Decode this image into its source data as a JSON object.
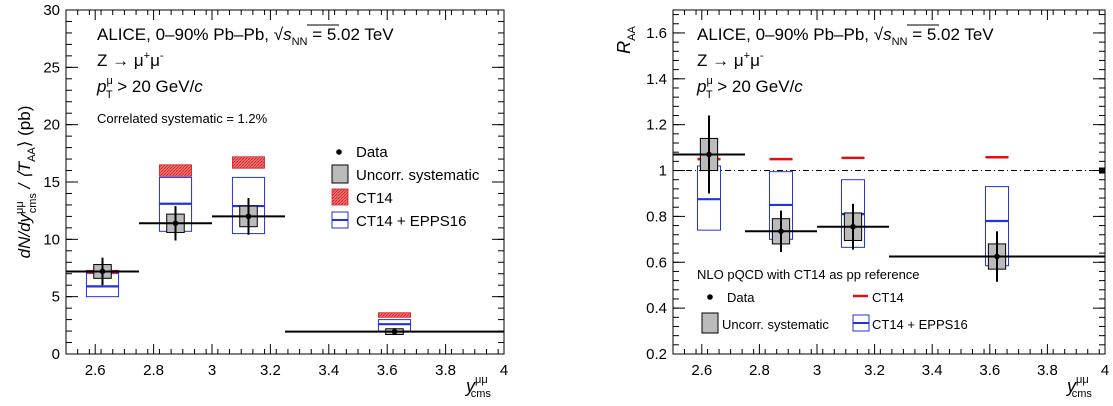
{
  "chart_data": [
    {
      "type": "scatter",
      "xlabel_main": "y",
      "xlabel_sup": "μμ",
      "xlabel_sub": "cms",
      "ylabel": "dN/dy",
      "ylabel_tail": " / ⟨T",
      "ylabel_sup": "μμ",
      "ylabel_sub": "cms",
      "ylabel_sub2": "AA",
      "ylabel_unit": "⟩ (pb)",
      "xlim": [
        2.5,
        4.0
      ],
      "ylim": [
        0,
        30
      ],
      "xticks": [
        "2.6",
        "2.8",
        "3",
        "3.2",
        "3.4",
        "3.6",
        "3.8",
        "4"
      ],
      "yticks": [
        "0",
        "5",
        "10",
        "15",
        "20",
        "25",
        "30"
      ],
      "annotations": {
        "line1_prefix": "ALICE, 0–90% Pb–Pb, ",
        "sqrt_symbol": "√",
        "s_symbol": "s",
        "nn_sub": "NN",
        "energy": " = 5.02 TeV",
        "process": "Z → μ",
        "process_sup1": "+",
        "process_mid": "μ",
        "process_sup2": "-",
        "pt_main": "p",
        "pt_sub": "T",
        "pt_sup": "μ",
        "pt_cut": " > 20 GeV/",
        "pt_c": "c",
        "corr_syst": "Correlated systematic = 1.2%"
      },
      "legend": [
        "Data",
        "Uncorr. systematic",
        "CT14",
        "CT14 + EPPS16"
      ],
      "series": [
        {
          "name": "Data",
          "x": [
            2.625,
            2.875,
            3.125,
            3.625
          ],
          "xerr": [
            [
              2.5,
              2.75
            ],
            [
              2.75,
              3.0
            ],
            [
              3.0,
              3.25
            ],
            [
              3.25,
              4.0
            ]
          ],
          "y": [
            7.2,
            11.4,
            12.0,
            1.95
          ],
          "yerr_stat": [
            1.2,
            1.5,
            1.6,
            0.3
          ],
          "syst": [
            0.6,
            0.8,
            0.9,
            0.25
          ]
        },
        {
          "name": "CT14",
          "x": [
            2.625,
            2.875,
            3.125,
            3.625
          ],
          "low": [
            7.0,
            15.5,
            16.2,
            3.2
          ],
          "high": [
            7.3,
            16.5,
            17.2,
            3.6
          ]
        },
        {
          "name": "CT14 + EPPS16",
          "x": [
            2.625,
            2.875,
            3.125,
            3.625
          ],
          "low": [
            5.0,
            10.7,
            10.5,
            2.0
          ],
          "central": [
            5.9,
            13.1,
            12.9,
            2.6
          ],
          "high": [
            7.1,
            15.4,
            15.4,
            3.0
          ]
        }
      ]
    },
    {
      "type": "scatter",
      "xlabel_main": "y",
      "xlabel_sup": "μμ",
      "xlabel_sub": "cms",
      "ylabel": "R",
      "ylabel_sub": "AA",
      "xlim": [
        2.5,
        4.0
      ],
      "ylim": [
        0.2,
        1.7
      ],
      "xticks": [
        "2.6",
        "2.8",
        "3",
        "3.2",
        "3.4",
        "3.6",
        "3.8",
        "4"
      ],
      "yticks": [
        "0.2",
        "0.4",
        "0.6",
        "0.8",
        "1",
        "1.2",
        "1.4",
        "1.6"
      ],
      "reference_line": 1.0,
      "annotations": {
        "line1_prefix": "ALICE, 0–90% Pb–Pb, ",
        "sqrt_symbol": "√",
        "s_symbol": "s",
        "nn_sub": "NN",
        "energy": " = 5.02 TeV",
        "process": "Z → μ",
        "process_sup1": "+",
        "process_mid": "μ",
        "process_sup2": "-",
        "pt_main": "p",
        "pt_sub": "T",
        "pt_sup": "μ",
        "pt_cut": " > 20 GeV/",
        "pt_c": "c",
        "nlo": "NLO pQCD with CT14 as pp reference"
      },
      "legend": [
        "Data",
        "CT14",
        "Uncorr. systematic",
        "CT14 + EPPS16"
      ],
      "series": [
        {
          "name": "Data",
          "x": [
            2.625,
            2.875,
            3.125,
            3.625
          ],
          "xerr": [
            [
              2.5,
              2.75
            ],
            [
              2.75,
              3.0
            ],
            [
              3.0,
              3.25
            ],
            [
              3.25,
              4.0
            ]
          ],
          "y": [
            1.07,
            0.735,
            0.755,
            0.625
          ],
          "yerr_stat": [
            0.17,
            0.09,
            0.1,
            0.11
          ],
          "syst": [
            0.07,
            0.055,
            0.06,
            0.055
          ]
        },
        {
          "name": "CT14",
          "x": [
            2.625,
            2.875,
            3.125,
            3.625
          ],
          "y": [
            1.05,
            1.05,
            1.055,
            1.058
          ]
        },
        {
          "name": "CT14 + EPPS16",
          "x": [
            2.625,
            2.875,
            3.125,
            3.625
          ],
          "low": [
            0.74,
            0.7,
            0.665,
            0.585
          ],
          "central": [
            0.875,
            0.85,
            0.81,
            0.78
          ],
          "high": [
            1.02,
            0.995,
            0.96,
            0.93
          ]
        }
      ]
    }
  ]
}
